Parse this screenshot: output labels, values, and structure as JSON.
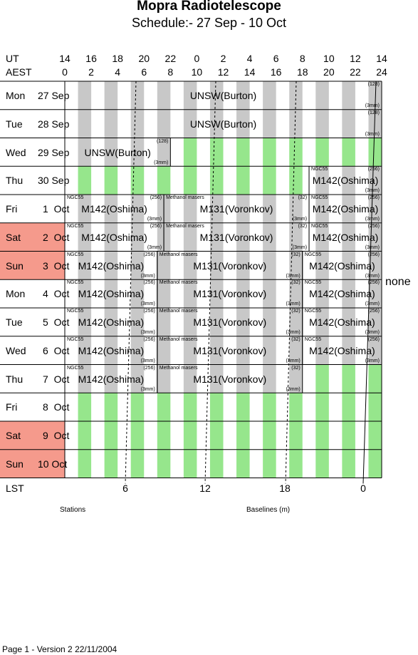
{
  "title": "Mopra Radiotelescope",
  "subtitle": "Schedule:- 27 Sep - 10 Oct",
  "axes": {
    "ut_label": "UT",
    "aest_label": "AEST",
    "lst_label": "LST",
    "ut_ticks": [
      "14",
      "16",
      "18",
      "20",
      "22",
      "0",
      "2",
      "4",
      "6",
      "8",
      "10",
      "12",
      "14"
    ],
    "aest_ticks": [
      "0",
      "2",
      "4",
      "6",
      "8",
      "10",
      "12",
      "14",
      "16",
      "18",
      "20",
      "22",
      "24"
    ],
    "lst_ticks": [
      "6",
      "12",
      "18",
      "0"
    ]
  },
  "days": [
    {
      "dow": "Mon",
      "date": "27 Sep",
      "weekend": false
    },
    {
      "dow": "Tue",
      "date": "28 Sep",
      "weekend": false
    },
    {
      "dow": "Wed",
      "date": "29 Sep",
      "weekend": false
    },
    {
      "dow": "Thu",
      "date": "30 Sep",
      "weekend": false
    },
    {
      "dow": "Fri",
      "date": "1  Oct",
      "weekend": false
    },
    {
      "dow": "Sat",
      "date": "2  Oct",
      "weekend": true
    },
    {
      "dow": "Sun",
      "date": "3  Oct",
      "weekend": true
    },
    {
      "dow": "Mon",
      "date": "4  Oct",
      "weekend": false
    },
    {
      "dow": "Tue",
      "date": "5  Oct",
      "weekend": false
    },
    {
      "dow": "Wed",
      "date": "6  Oct",
      "weekend": false
    },
    {
      "dow": "Thu",
      "date": "7  Oct",
      "weekend": false
    },
    {
      "dow": "Fri",
      "date": "8  Oct",
      "weekend": false
    },
    {
      "dow": "Sat",
      "date": "9  Oct",
      "weekend": true
    },
    {
      "dow": "Sun",
      "date": "10 Oct",
      "weekend": true
    }
  ],
  "blocks": [
    {
      "day": 0,
      "start": 0,
      "end": 24,
      "project": "UNSW(Burton)",
      "topnote": "",
      "topright": "(128)",
      "bottomright": "(3mm)"
    },
    {
      "day": 1,
      "start": 0,
      "end": 24,
      "project": "UNSW(Burton)",
      "topnote": "",
      "topright": "(128)",
      "bottomright": "(3mm)"
    },
    {
      "day": 2,
      "start": 0,
      "end": 8,
      "project": "UNSW(Burton)",
      "topnote": "",
      "topright": "(128)",
      "bottomright": "(3mm)"
    },
    {
      "day": 3,
      "start": 18.5,
      "end": 24,
      "project": "M142(Oshima)",
      "topnote": "NGC55",
      "topright": "(256)",
      "bottomright": "(3mm)"
    },
    {
      "day": 4,
      "start": 0,
      "end": 7.5,
      "project": "M142(Oshima)",
      "topnote": "NGC55",
      "topright": "(256)",
      "bottomright": "(3mm)"
    },
    {
      "day": 4,
      "start": 7.5,
      "end": 18.5,
      "project": "M131(Voronkov)",
      "topnote": "Methanol masers",
      "topright": "(32)",
      "bottomright": "(3mm)"
    },
    {
      "day": 4,
      "start": 18.5,
      "end": 24,
      "project": "M142(Oshima)",
      "topnote": "NGC55",
      "topright": "(256)",
      "bottomright": "(3mm)"
    },
    {
      "day": 5,
      "start": 0,
      "end": 7.5,
      "project": "M142(Oshima)",
      "topnote": "NGC55",
      "topright": "(256)",
      "bottomright": "(3mm)"
    },
    {
      "day": 5,
      "start": 7.5,
      "end": 18.5,
      "project": "M131(Voronkov)",
      "topnote": "Methanol masers",
      "topright": "(32)",
      "bottomright": "(3mm)"
    },
    {
      "day": 5,
      "start": 18.5,
      "end": 24,
      "project": "M142(Oshima)",
      "topnote": "NGC55",
      "topright": "(256)",
      "bottomright": "(3mm)"
    },
    {
      "day": 6,
      "start": 0,
      "end": 7,
      "project": "M142(Oshima)",
      "topnote": "NGC55",
      "topright": "(256)",
      "bottomright": "(3mm)"
    },
    {
      "day": 6,
      "start": 7,
      "end": 18,
      "project": "M131(Voronkov)",
      "topnote": "Methanol masers",
      "topright": "(32)",
      "bottomright": "(3mm)"
    },
    {
      "day": 6,
      "start": 18,
      "end": 24,
      "project": "M142(Oshima)",
      "topnote": "NGC55",
      "topright": "(256)",
      "bottomright": "(3mm)"
    },
    {
      "day": 7,
      "start": 0,
      "end": 7,
      "project": "M142(Oshima)",
      "topnote": "NGC55",
      "topright": "(256)",
      "bottomright": "(3mm)"
    },
    {
      "day": 7,
      "start": 7,
      "end": 18,
      "project": "M131(Voronkov)",
      "topnote": "Methanol masers",
      "topright": "(32)",
      "bottomright": "(3mm)"
    },
    {
      "day": 7,
      "start": 18,
      "end": 24,
      "project": "M142(Oshima)",
      "topnote": "NGC55",
      "topright": "(256)",
      "bottomright": "(3mm)"
    },
    {
      "day": 8,
      "start": 0,
      "end": 7,
      "project": "M142(Oshima)",
      "topnote": "NGC55",
      "topright": "(256)",
      "bottomright": "(3mm)"
    },
    {
      "day": 8,
      "start": 7,
      "end": 18,
      "project": "M131(Voronkov)",
      "topnote": "Methanol masers",
      "topright": "(32)",
      "bottomright": "(3mm)"
    },
    {
      "day": 8,
      "start": 18,
      "end": 24,
      "project": "M142(Oshima)",
      "topnote": "NGC55",
      "topright": "(256)",
      "bottomright": "(3mm)"
    },
    {
      "day": 9,
      "start": 0,
      "end": 7,
      "project": "M142(Oshima)",
      "topnote": "NGC55",
      "topright": "(256)",
      "bottomright": "(3mm)"
    },
    {
      "day": 9,
      "start": 7,
      "end": 18,
      "project": "M131(Voronkov)",
      "topnote": "Methanol masers",
      "topright": "(32)",
      "bottomright": "(3mm)"
    },
    {
      "day": 9,
      "start": 18,
      "end": 24,
      "project": "M142(Oshima)",
      "topnote": "NGC55",
      "topright": "(256)",
      "bottomright": "(3mm)"
    },
    {
      "day": 10,
      "start": 0,
      "end": 7,
      "project": "M142(Oshima)",
      "topnote": "NGC55",
      "topright": "(256)",
      "bottomright": "(3mm)"
    },
    {
      "day": 10,
      "start": 7,
      "end": 18,
      "project": "M131(Voronkov)",
      "topnote": "Methanol masers",
      "topright": "(32)",
      "bottomright": "(3mm)"
    }
  ],
  "side_note": "none",
  "footnotes": {
    "stations": "Stations",
    "baselines": "Baselines (m)"
  },
  "footer": "Page 1 - Version 2  22/11/2004",
  "colors": {
    "weekend": "#f59a8c",
    "stripe_grey": "#c8c8c8",
    "stripe_green": "#96e68c"
  }
}
